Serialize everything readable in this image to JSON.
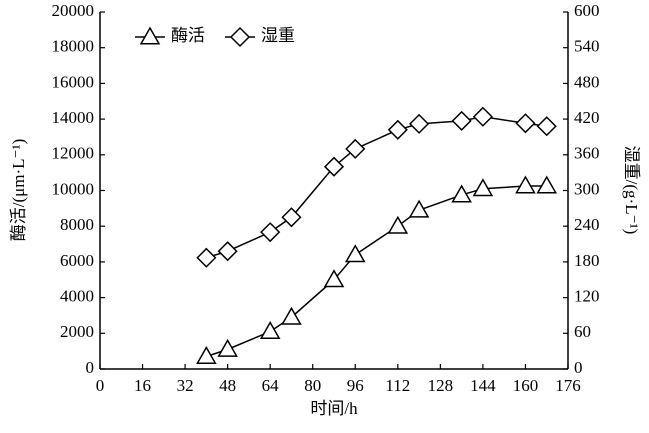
{
  "chart_data": {
    "type": "line",
    "xlabel": "时间/h",
    "ylabel": "酶活/(μm·L⁻¹)",
    "y2label": "湿重/(g·L⁻¹)",
    "xlim": [
      0,
      176
    ],
    "xticks": [
      0,
      16,
      32,
      48,
      64,
      80,
      96,
      112,
      128,
      144,
      160,
      176
    ],
    "ylim": [
      0,
      20000
    ],
    "yticks": [
      0,
      2000,
      4000,
      6000,
      8000,
      10000,
      12000,
      14000,
      16000,
      18000,
      20000
    ],
    "y2lim": [
      0,
      600
    ],
    "y2ticks": [
      0,
      60,
      120,
      180,
      240,
      300,
      360,
      420,
      480,
      540,
      600
    ],
    "legend": "top-left",
    "series": [
      {
        "name": "酶活",
        "color": "#000000",
        "marker": "triangle",
        "x": [
          40,
          48,
          64,
          72,
          88,
          96,
          112,
          120,
          136,
          144,
          160,
          168
        ],
        "values": [
          700,
          1100,
          2100,
          2900,
          5000,
          6400,
          8000,
          8900,
          9750,
          10100,
          10250,
          10250
        ]
      },
      {
        "name": "湿重",
        "color": "#000000",
        "marker": "diamond",
        "axis": "y2",
        "x": [
          40,
          48,
          64,
          72,
          88,
          96,
          112,
          120,
          136,
          144,
          160,
          168
        ],
        "values": [
          187,
          198,
          230,
          255,
          340,
          370,
          402,
          412,
          417,
          424,
          413,
          408
        ]
      }
    ]
  }
}
